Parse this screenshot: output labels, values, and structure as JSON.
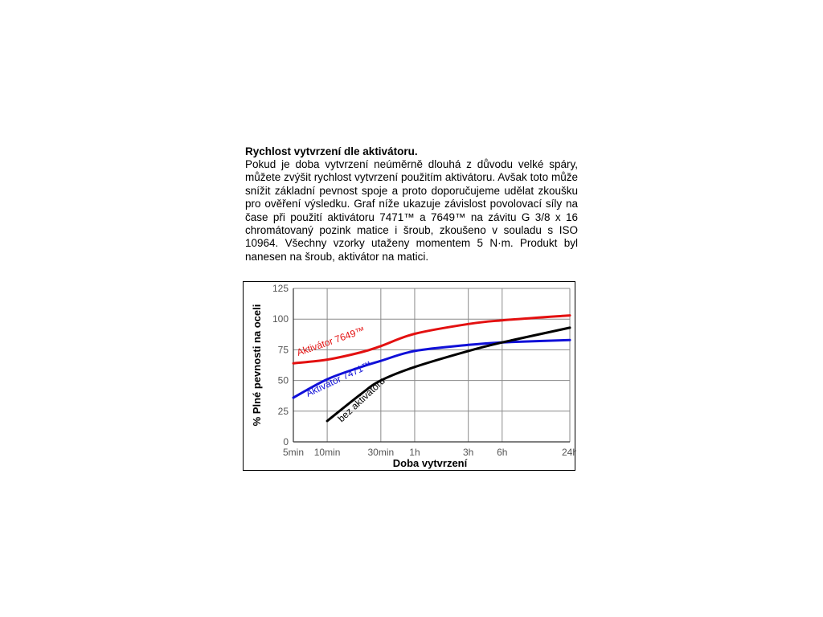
{
  "text": {
    "heading": "Rychlost vytvrzení dle aktivátoru.",
    "paragraph": "Pokud je doba vytvrzení neúměrně dlouhá z důvodu velké spáry, můžete zvýšit rychlost vytvrzení použitím aktivátoru. Avšak toto může snížit základní pevnost spoje a proto doporučujeme udělat zkoušku pro ověření výsledku. Graf níže ukazuje závislost povolovací síly na čase při použití aktivátoru 7471™ a 7649™ na závitu G 3/8 x 16 chromátovaný pozink matice i šroub, zkoušeno v souladu s ISO 10964. Všechny vzorky utaženy momentem 5 N·m. Produkt byl nanesen na šroub, aktivátor na matici."
  },
  "chart_data": {
    "type": "line",
    "xlabel": "Doba vytvrzení",
    "ylabel": "% Plné pevnosti na oceli",
    "x_scale": "log",
    "x_unit": "minutes",
    "x_range": [
      5,
      1440
    ],
    "ylim": [
      0,
      125
    ],
    "grid": true,
    "x_ticks": [
      {
        "value": 5,
        "label": "5min"
      },
      {
        "value": 10,
        "label": "10min"
      },
      {
        "value": 30,
        "label": "30min"
      },
      {
        "value": 60,
        "label": "1h"
      },
      {
        "value": 180,
        "label": "3h"
      },
      {
        "value": 360,
        "label": "6h"
      },
      {
        "value": 1440,
        "label": "24h"
      }
    ],
    "y_ticks": [
      0,
      25,
      50,
      75,
      100,
      125
    ],
    "series": [
      {
        "name": "Aktivátor 7649™",
        "color": "#e31010",
        "points": [
          [
            5,
            64
          ],
          [
            10,
            67
          ],
          [
            20,
            73
          ],
          [
            30,
            78
          ],
          [
            60,
            88
          ],
          [
            180,
            96
          ],
          [
            360,
            99
          ],
          [
            1440,
            103
          ]
        ]
      },
      {
        "name": "Aktivátor 7471™",
        "color": "#1010d8",
        "points": [
          [
            5,
            36
          ],
          [
            10,
            51
          ],
          [
            20,
            61
          ],
          [
            30,
            66
          ],
          [
            60,
            74
          ],
          [
            180,
            79
          ],
          [
            360,
            81
          ],
          [
            1440,
            83
          ]
        ]
      },
      {
        "name": "bez aktivátoru",
        "color": "#000000",
        "points": [
          [
            10,
            17
          ],
          [
            20,
            39
          ],
          [
            30,
            50
          ],
          [
            60,
            61
          ],
          [
            180,
            74
          ],
          [
            360,
            81
          ],
          [
            1440,
            93
          ]
        ]
      }
    ]
  }
}
